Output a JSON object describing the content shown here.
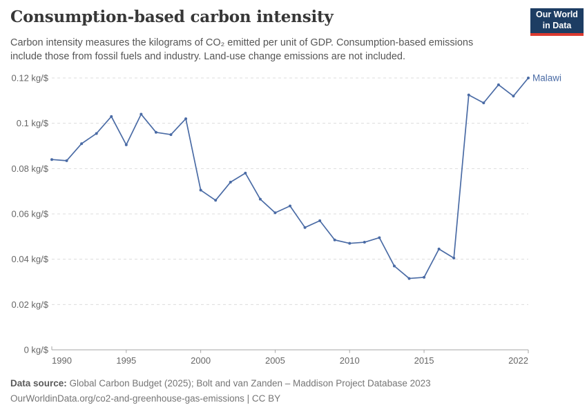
{
  "header": {
    "title": "Consumption-based carbon intensity",
    "subtitle": "Carbon intensity measures the kilograms of CO₂ emitted per unit of GDP. Consumption-based emissions include those from fossil fuels and industry. Land-use change emissions are not included.",
    "logo": {
      "line1": "Our World",
      "line2": "in Data",
      "bg_color": "#1d3d63",
      "accent_color": "#dc3a2f"
    }
  },
  "chart_data": {
    "type": "line",
    "title": "Consumption-based carbon intensity",
    "unit": "kg/$",
    "xlabel": "",
    "ylabel": "",
    "xlim": [
      1990,
      2022
    ],
    "ylim": [
      0,
      0.12
    ],
    "x": [
      1990,
      1991,
      1992,
      1993,
      1994,
      1995,
      1996,
      1997,
      1998,
      1999,
      2000,
      2001,
      2002,
      2003,
      2004,
      2005,
      2006,
      2007,
      2008,
      2009,
      2010,
      2011,
      2012,
      2013,
      2014,
      2015,
      2016,
      2017,
      2018,
      2019,
      2020,
      2021,
      2022
    ],
    "series": [
      {
        "name": "Malawi",
        "color": "#4a6ba5",
        "values": [
          0.084,
          0.0835,
          0.091,
          0.0955,
          0.103,
          0.0905,
          0.104,
          0.096,
          0.095,
          0.102,
          0.0705,
          0.066,
          0.074,
          0.078,
          0.0665,
          0.0605,
          0.0635,
          0.054,
          0.057,
          0.0485,
          0.047,
          0.0475,
          0.0495,
          0.037,
          0.0315,
          0.032,
          0.0445,
          0.0405,
          0.1125,
          0.109,
          0.117,
          0.112,
          0.12
        ]
      }
    ],
    "x_ticks": [
      1990,
      1995,
      2000,
      2005,
      2010,
      2015,
      2022
    ],
    "x_tick_labels": [
      "1990",
      "1995",
      "2000",
      "2005",
      "2010",
      "2015",
      "2022"
    ],
    "y_ticks": [
      0,
      0.02,
      0.04,
      0.06,
      0.08,
      0.1,
      0.12
    ],
    "y_tick_labels": [
      "0 kg/$",
      "0.02 kg/$",
      "0.04 kg/$",
      "0.06 kg/$",
      "0.08 kg/$",
      "0.1 kg/$",
      "0.12 kg/$"
    ],
    "grid": "horizontal-dashed",
    "legend": "end-of-line-label",
    "colors": {
      "gridline": "#dcdcdc",
      "axis": "#a5a5a5",
      "tick_text": "#666666"
    }
  },
  "footer": {
    "source_label": "Data source:",
    "source_text": " Global Carbon Budget (2025); Bolt and van Zanden – Maddison Project Database 2023",
    "note_text": "OurWorldinData.org/co2-and-greenhouse-gas-emissions | CC BY"
  }
}
